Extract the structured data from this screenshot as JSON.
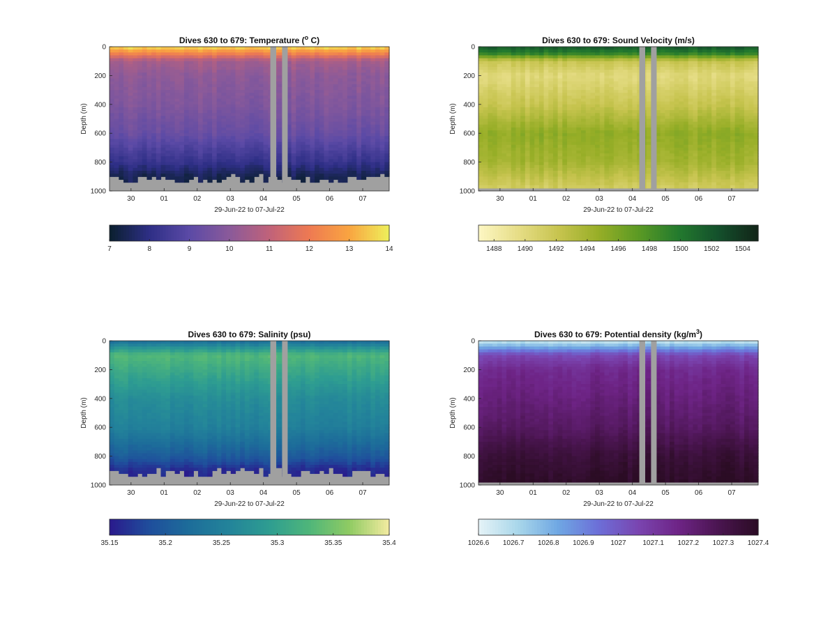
{
  "figure": {
    "panels": [
      {
        "title": "Dives 630 to 679: Temperature (",
        "title_sup": "o",
        "title_suffix": " C)",
        "ylabel": "Depth (m)",
        "xlabel": "29-Jun-22 to 07-Jul-22",
        "variable": "temperature",
        "colormap": [
          "#0a1f2e",
          "#2e2f86",
          "#5b4aa6",
          "#8a5a9a",
          "#c0627a",
          "#ee7a52",
          "#f9a541",
          "#eef05b"
        ],
        "colorbar_ticks": [
          "7",
          "8",
          "9",
          "10",
          "11",
          "12",
          "13",
          "14"
        ],
        "colorbar_range": [
          7,
          14
        ]
      },
      {
        "title": "Dives 630 to 679: Sound Velocity (m/s)",
        "title_sup": "",
        "title_suffix": "",
        "ylabel": "Depth (m)",
        "xlabel": "29-Jun-22 to 07-Jul-22",
        "variable": "sound_velocity",
        "colormap": [
          "#fdf7c4",
          "#e6dd86",
          "#c7c44f",
          "#97ae27",
          "#5b9a24",
          "#237a2e",
          "#14502c",
          "#122418"
        ],
        "colorbar_ticks": [
          "1488",
          "1490",
          "1492",
          "1494",
          "1496",
          "1498",
          "1500",
          "1502",
          "1504"
        ],
        "colorbar_range": [
          1487,
          1505
        ]
      },
      {
        "title": "Dives 630 to 679: Salinity (psu)",
        "title_sup": "",
        "title_suffix": "",
        "ylabel": "Depth (m)",
        "xlabel": "29-Jun-22 to 07-Jul-22",
        "variable": "salinity",
        "colormap": [
          "#2a1a8c",
          "#1f4e9c",
          "#1d6d9a",
          "#23849a",
          "#2e9d91",
          "#4fb67a",
          "#8fcb63",
          "#f4eba1"
        ],
        "colorbar_ticks": [
          "35.15",
          "35.2",
          "35.25",
          "35.3",
          "35.35",
          "35.4"
        ],
        "colorbar_range": [
          35.15,
          35.4
        ]
      },
      {
        "title": "Dives 630 to 679: Potential density (kg/m",
        "title_sup": "3",
        "title_suffix": ")",
        "ylabel": "Depth (m)",
        "xlabel": "29-Jun-22 to 07-Jul-22",
        "variable": "potential_density",
        "colormap": [
          "#e6f3f7",
          "#a8d6ea",
          "#6fa7e3",
          "#6c6fd8",
          "#7a45b0",
          "#6e2486",
          "#4a1550",
          "#2b0c24"
        ],
        "colorbar_ticks": [
          "1026.6",
          "1026.7",
          "1026.8",
          "1026.9",
          "1027",
          "1027.1",
          "1027.2",
          "1027.3",
          "1027.4"
        ],
        "colorbar_range": [
          1026.6,
          1027.4
        ]
      }
    ]
  },
  "chart_data": [
    {
      "type": "heatmap",
      "title": "Dives 630 to 679: Temperature (o C)",
      "xlabel": "29-Jun-22 to 07-Jul-22",
      "ylabel": "Depth (m)",
      "x_ticks": [
        "30",
        "01",
        "02",
        "03",
        "04",
        "05",
        "06",
        "07"
      ],
      "y_ticks": [
        "0",
        "200",
        "400",
        "600",
        "800",
        "1000"
      ],
      "ylim": [
        1000,
        0
      ],
      "colorbar_range": [
        7,
        14
      ],
      "profile_depths": [
        0,
        50,
        100,
        200,
        400,
        600,
        800,
        900
      ],
      "profile_values": [
        13.8,
        12.2,
        10.5,
        10.1,
        9.8,
        9.3,
        8.2,
        7.4
      ],
      "data_gap_days": [
        "04",
        "05"
      ],
      "grid": "off"
    },
    {
      "type": "heatmap",
      "title": "Dives 630 to 679: Sound Velocity (m/s)",
      "xlabel": "29-Jun-22 to 07-Jul-22",
      "ylabel": "Depth (m)",
      "x_ticks": [
        "30",
        "01",
        "02",
        "03",
        "04",
        "05",
        "06",
        "07"
      ],
      "y_ticks": [
        "0",
        "200",
        "400",
        "600",
        "800",
        "1000"
      ],
      "ylim": [
        1000,
        0
      ],
      "colorbar_range": [
        1487,
        1505
      ],
      "profile_depths": [
        0,
        50,
        100,
        200,
        400,
        600,
        800,
        1000
      ],
      "profile_values": [
        1502,
        1499,
        1492,
        1490,
        1492,
        1495,
        1494,
        1491
      ],
      "data_gap_days": [
        "04",
        "05"
      ],
      "grid": "off"
    },
    {
      "type": "heatmap",
      "title": "Dives 630 to 679: Salinity (psu)",
      "xlabel": "29-Jun-22 to 07-Jul-22",
      "ylabel": "Depth (m)",
      "x_ticks": [
        "30",
        "01",
        "02",
        "03",
        "04",
        "05",
        "06",
        "07"
      ],
      "y_ticks": [
        "0",
        "200",
        "400",
        "600",
        "800",
        "1000"
      ],
      "ylim": [
        1000,
        0
      ],
      "colorbar_range": [
        35.15,
        35.4
      ],
      "profile_depths": [
        0,
        50,
        100,
        200,
        400,
        600,
        800,
        900
      ],
      "profile_values": [
        35.22,
        35.28,
        35.33,
        35.31,
        35.27,
        35.25,
        35.2,
        35.16
      ],
      "data_gap_days": [
        "04",
        "05"
      ],
      "grid": "off"
    },
    {
      "type": "heatmap",
      "title": "Dives 630 to 679: Potential density (kg/m3)",
      "xlabel": "29-Jun-22 to 07-Jul-22",
      "ylabel": "Depth (m)",
      "x_ticks": [
        "30",
        "01",
        "02",
        "03",
        "04",
        "05",
        "06",
        "07"
      ],
      "y_ticks": [
        "0",
        "200",
        "400",
        "600",
        "800",
        "1000"
      ],
      "ylim": [
        1000,
        0
      ],
      "colorbar_range": [
        1026.6,
        1027.4
      ],
      "profile_depths": [
        0,
        50,
        100,
        200,
        400,
        600,
        800,
        1000
      ],
      "profile_values": [
        1026.65,
        1026.85,
        1027.05,
        1027.15,
        1027.2,
        1027.25,
        1027.35,
        1027.4
      ],
      "data_gap_days": [
        "04",
        "05"
      ],
      "grid": "off"
    }
  ]
}
